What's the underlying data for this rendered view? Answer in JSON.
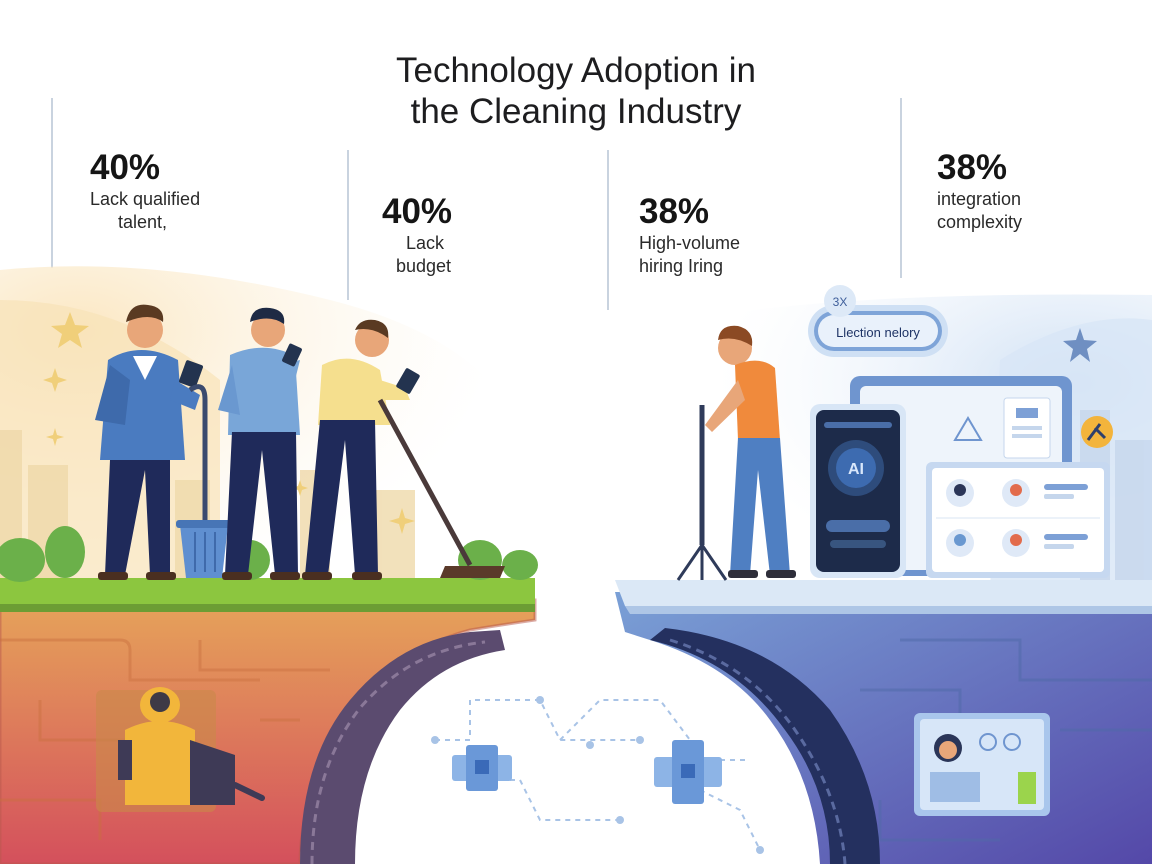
{
  "title": {
    "line1": "Technology Adoption in",
    "line2": "the Cleaning Industry"
  },
  "stats": [
    {
      "value": "40%",
      "label_lines": [
        "Lack qualified",
        "talent,"
      ]
    },
    {
      "value": "40%",
      "label_lines": [
        "Lack",
        "budget"
      ]
    },
    {
      "value": "38%",
      "label_lines": [
        "High-volume",
        "hiring  Iring"
      ]
    },
    {
      "value": "38%",
      "label_lines": [
        "integration",
        "complexity"
      ]
    }
  ],
  "bubble": {
    "badge": "3X",
    "text": "Llection nelory"
  },
  "phone": {
    "logo": "AI"
  },
  "colors": {
    "grass": "#8cc63f",
    "left_cliff_top": "#e39a53",
    "left_cliff_bottom": "#d9545a",
    "right_cliff_top": "#6b93cf",
    "right_cliff_bottom": "#5a55b0",
    "suit_blue": "#4a7bc0",
    "pants_navy": "#1f2a5a",
    "accent_orange": "#f08a3c"
  }
}
